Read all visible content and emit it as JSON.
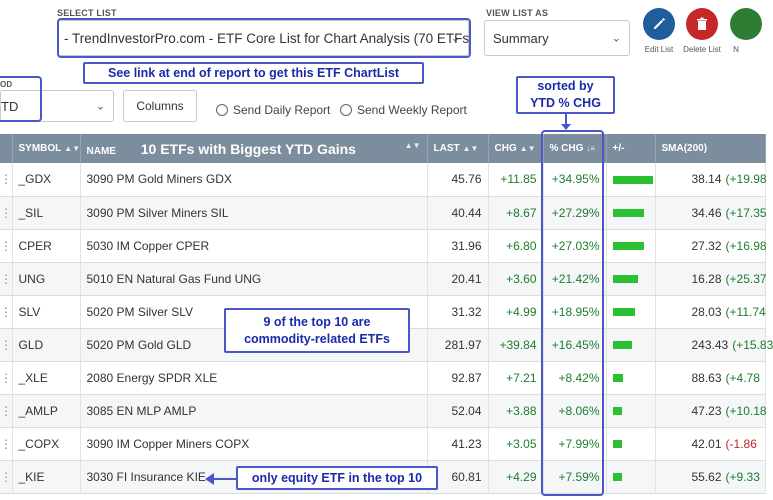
{
  "select_list": {
    "label": "SELECT LIST",
    "value": "- TrendInvestorPro.com - ETF Core List for Chart Analysis (70 ETFs"
  },
  "view_list": {
    "label": "VIEW LIST AS",
    "value": "Summary"
  },
  "actions": {
    "edit_label": "Edit List",
    "delete_label": "Delete List",
    "new_label": "N"
  },
  "period": {
    "label": "OD",
    "value": "TD"
  },
  "columns_button": "Columns",
  "send_daily": "Send Daily Report",
  "send_weekly": "Send Weekly Report",
  "callouts": {
    "link": "See link at end of report to get this ETF ChartList",
    "sorted_line1": "sorted by",
    "sorted_line2": "YTD % CHG",
    "commodity_line1": "9 of the top 10 are",
    "commodity_line2": "commodity-related ETFs",
    "equity": "only equity ETF in the top 10"
  },
  "table": {
    "headers": {
      "symbol": "SYMBOL",
      "name": "NAME",
      "title": "10 ETFs with Biggest YTD Gains",
      "last": "LAST",
      "chg": "CHG",
      "pct_chg": "% CHG",
      "plus_minus": "+/-",
      "sma": "SMA(200)"
    },
    "rows": [
      {
        "symbol": "_GDX",
        "name": "3090 PM Gold Miners GDX",
        "last": "45.76",
        "chg": "+11.85",
        "pct": "+34.95%",
        "pct_value": 34.95,
        "sma": "38.14",
        "sma_chg": "(+19.98"
      },
      {
        "symbol": "_SIL",
        "name": "3090 PM Silver Miners SIL",
        "last": "40.44",
        "chg": "+8.67",
        "pct": "+27.29%",
        "pct_value": 27.29,
        "sma": "34.46",
        "sma_chg": "(+17.35"
      },
      {
        "symbol": "CPER",
        "name": "5030 IM Copper CPER",
        "last": "31.96",
        "chg": "+6.80",
        "pct": "+27.03%",
        "pct_value": 27.03,
        "sma": "27.32",
        "sma_chg": "(+16.98"
      },
      {
        "symbol": "UNG",
        "name": "5010 EN Natural Gas Fund UNG",
        "last": "20.41",
        "chg": "+3.60",
        "pct": "+21.42%",
        "pct_value": 21.42,
        "sma": "16.28",
        "sma_chg": "(+25.37"
      },
      {
        "symbol": "SLV",
        "name": "5020 PM Silver SLV",
        "last": "31.32",
        "chg": "+4.99",
        "pct": "+18.95%",
        "pct_value": 18.95,
        "sma": "28.03",
        "sma_chg": "(+11.74"
      },
      {
        "symbol": "GLD",
        "name": "5020 PM Gold GLD",
        "last": "281.97",
        "chg": "+39.84",
        "pct": "+16.45%",
        "pct_value": 16.45,
        "sma": "243.43",
        "sma_chg": "(+15.83"
      },
      {
        "symbol": "_XLE",
        "name": "2080 Energy SPDR XLE",
        "last": "92.87",
        "chg": "+7.21",
        "pct": "+8.42%",
        "pct_value": 8.42,
        "sma": "88.63",
        "sma_chg": "(+4.78"
      },
      {
        "symbol": "_AMLP",
        "name": "3085 EN MLP AMLP",
        "last": "52.04",
        "chg": "+3.88",
        "pct": "+8.06%",
        "pct_value": 8.06,
        "sma": "47.23",
        "sma_chg": "(+10.18"
      },
      {
        "symbol": "_COPX",
        "name": "3090 IM Copper Miners COPX",
        "last": "41.23",
        "chg": "+3.05",
        "pct": "+7.99%",
        "pct_value": 7.99,
        "sma": "42.01",
        "sma_chg": "(-1.86",
        "sma_neg": true
      },
      {
        "symbol": "_KIE",
        "name": "3030 FI Insurance KIE",
        "last": "60.81",
        "chg": "+4.29",
        "pct": "+7.59%",
        "pct_value": 7.59,
        "sma": "55.62",
        "sma_chg": "(+9.33"
      }
    ]
  },
  "colors": {
    "accent": "#4a57c9",
    "header": "#7c8e9d",
    "positive": "#1e7d2d",
    "negative": "#c0262d",
    "edit_icon": "#1f5e9a",
    "delete_icon": "#c62828",
    "new_icon": "#2e7d32"
  },
  "icons": {
    "edit": "pencil-icon",
    "delete": "trash-icon",
    "dropdown": "chevron-down-icon",
    "sort": "sort-icon"
  }
}
